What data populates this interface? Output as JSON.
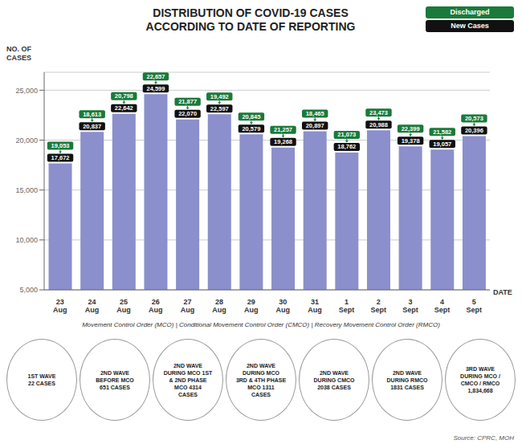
{
  "chart_data": {
    "type": "bar",
    "title": "DISTRIBUTION OF COVID-19 CASES\nACCORDING TO DATE OF REPORTING",
    "x_label": "DATE",
    "y_label": "NO. OF\nCASES",
    "categories": [
      "23\nAug",
      "24\nAug",
      "25\nAug",
      "26\nAug",
      "27\nAug",
      "28\nAug",
      "29\nAug",
      "30\nAug",
      "31\nAug",
      "1\nSept",
      "2\nSept",
      "3\nSept",
      "4\nSept",
      "5\nSept"
    ],
    "color": "#8b8fcc",
    "series": [
      {
        "name": "New Cases",
        "color": "#111111",
        "values": [
          17672,
          20837,
          22642,
          24599,
          22070,
          22597,
          20579,
          19268,
          20897,
          18762,
          20988,
          19378,
          19057,
          20396
        ],
        "value_labels": [
          "17,672",
          "20,837",
          "22,642",
          "24,599",
          "22,070",
          "22,597",
          "20,579",
          "19,268",
          "20,897",
          "18,762",
          "20,988",
          "19,378",
          "19,057",
          "20,396"
        ]
      },
      {
        "name": "Discharged",
        "color": "#1a7a3a",
        "values": [
          19053,
          18613,
          20798,
          22657,
          21877,
          19492,
          20845,
          21257,
          18465,
          21073,
          23473,
          22399,
          21582,
          20573
        ],
        "value_labels": [
          "19,053",
          "18,613",
          "20,798",
          "22,657",
          "21,877",
          "19,492",
          "20,845",
          "21,257",
          "18,465",
          "21,073",
          "23,473",
          "22,399",
          "21,582",
          "20,573"
        ]
      }
    ],
    "ylim": [
      5000,
      26800
    ],
    "yticks": [
      {
        "value": 5000,
        "label": "5,000"
      },
      {
        "value": 10000,
        "label": "10,000"
      },
      {
        "value": 15000,
        "label": "15,000"
      },
      {
        "value": 20000,
        "label": "20,000"
      },
      {
        "value": 25000,
        "label": "25,000"
      }
    ],
    "grid": true,
    "legend": "upper right",
    "data_labels": true,
    "annotations": [
      "Movement Control Order (MCO)  |  Conditional Movement Control Order (CMCO)  |  Recovery Movement Control Order (RMCO)",
      "1ST WAVE\n22 CASES",
      "2ND WAVE\nBEFORE MCO\n651 CASES",
      "2ND WAVE\nDURING MCO 1ST\n& 2ND PHASE\nMCO 4314\nCASES",
      "2ND WAVE\nDURING MCO\n3RD & 4TH PHASE\nMCO 1311\nCASES",
      "2ND WAVE\nDURING CMCO\n2038 CASES",
      "2ND WAVE\nDURING RMCO\n1831 CASES",
      "3RD WAVE\nDURING MCO /\nCMCO / RMCO\n1,834,668",
      "Source: CPRC, MOH"
    ]
  }
}
